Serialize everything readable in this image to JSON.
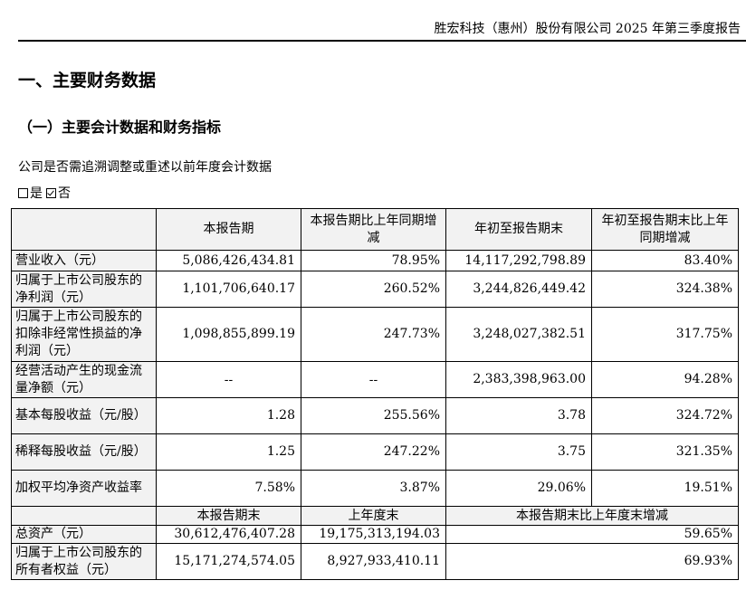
{
  "header": {
    "text": "胜宏科技（惠州）股份有限公司 2025 年第三季度报告"
  },
  "section_title": "一、主要财务数据",
  "subsection_title": "（一）主要会计数据和财务指标",
  "question": "公司是否需追溯调整或重述以前年度会计数据",
  "options": {
    "yes": "是",
    "no": "否",
    "selected": "否"
  },
  "table": {
    "headers": [
      "",
      "本报告期",
      "本报告期比上年同期增减",
      "年初至报告期末",
      "年初至报告期末比上年同期增减"
    ],
    "rows": [
      {
        "label": "营业收入（元）",
        "values": [
          "5,086,426,434.81",
          "78.95%",
          "14,117,292,798.89",
          "83.40%"
        ]
      },
      {
        "label": "归属于上市公司股东的净利润（元）",
        "values": [
          "1,101,706,640.17",
          "260.52%",
          "3,244,826,449.42",
          "324.38%"
        ]
      },
      {
        "label": "归属于上市公司股东的扣除非经常性损益的净利润（元）",
        "values": [
          "1,098,855,899.19",
          "247.73%",
          "3,248,027,382.51",
          "317.75%"
        ]
      },
      {
        "label": "经营活动产生的现金流量净额（元）",
        "values": [
          "--",
          "--",
          "2,383,398,963.00",
          "94.28%"
        ]
      },
      {
        "label": "基本每股收益（元/股）",
        "values": [
          "1.28",
          "255.56%",
          "3.78",
          "324.72%"
        ]
      },
      {
        "label": "稀释每股收益（元/股）",
        "values": [
          "1.25",
          "247.22%",
          "3.75",
          "321.35%"
        ]
      },
      {
        "label": "加权平均净资产收益率",
        "values": [
          "7.58%",
          "3.87%",
          "29.06%",
          "19.51%"
        ]
      }
    ],
    "sub_headers": [
      "",
      "本报告期末",
      "上年度末",
      "本报告期末比上年度末增减"
    ],
    "sub_rows": [
      {
        "label": "总资产（元）",
        "values": [
          "30,612,476,407.28",
          "19,175,313,194.03",
          "59.65%"
        ]
      },
      {
        "label": "归属于上市公司股东的所有者权益（元）",
        "values": [
          "15,171,274,574.05",
          "8,927,933,410.11",
          "69.93%"
        ]
      }
    ]
  }
}
